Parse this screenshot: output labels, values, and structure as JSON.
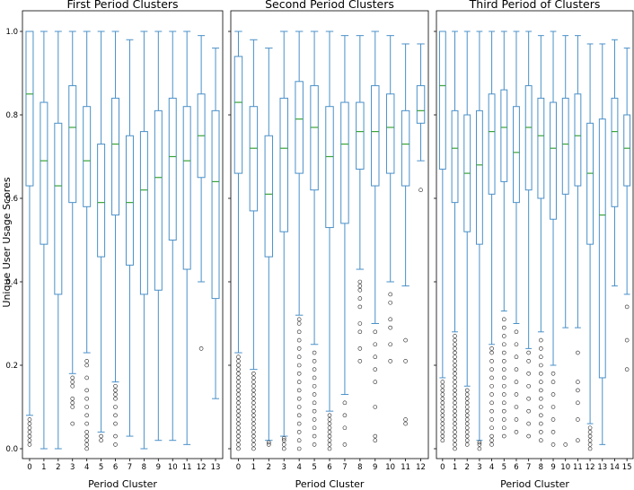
{
  "ylabel": "Unique User Usage Scores",
  "yticks": [
    0.0,
    0.2,
    0.4,
    0.6,
    0.8,
    1.0
  ],
  "ytick_labels": [
    "0.0",
    "0.2",
    "0.4",
    "0.6",
    "0.8",
    "1.0"
  ],
  "chart_data": [
    {
      "type": "box",
      "title": "First Period Clusters",
      "xlabel": "Period Cluster",
      "ylabel": "Unique User Usage Scores",
      "ylim": [
        0,
        1
      ],
      "categories": [
        "0",
        "1",
        "2",
        "3",
        "4",
        "5",
        "6",
        "7",
        "8",
        "9",
        "10",
        "11",
        "12",
        "13"
      ],
      "boxes": [
        {
          "whislo": 0.08,
          "q1": 0.63,
          "med": 0.85,
          "q3": 1.0,
          "whishi": 1.0,
          "fliers": [
            0.01,
            0.02,
            0.03,
            0.04,
            0.05,
            0.06,
            0.07
          ]
        },
        {
          "whislo": 0.0,
          "q1": 0.49,
          "med": 0.69,
          "q3": 0.83,
          "whishi": 1.0,
          "fliers": []
        },
        {
          "whislo": 0.0,
          "q1": 0.37,
          "med": 0.63,
          "q3": 0.78,
          "whishi": 1.0,
          "fliers": []
        },
        {
          "whislo": 0.18,
          "q1": 0.59,
          "med": 0.77,
          "q3": 0.87,
          "whishi": 1.0,
          "fliers": [
            0.06,
            0.1,
            0.11,
            0.12,
            0.15,
            0.16,
            0.17
          ]
        },
        {
          "whislo": 0.23,
          "q1": 0.58,
          "med": 0.69,
          "q3": 0.82,
          "whishi": 1.0,
          "fliers": [
            0.0,
            0.01,
            0.02,
            0.03,
            0.04,
            0.06,
            0.08,
            0.1,
            0.12,
            0.14,
            0.17,
            0.2,
            0.21
          ]
        },
        {
          "whislo": 0.04,
          "q1": 0.46,
          "med": 0.59,
          "q3": 0.73,
          "whishi": 1.0,
          "fliers": [
            0.02,
            0.03
          ]
        },
        {
          "whislo": 0.16,
          "q1": 0.56,
          "med": 0.73,
          "q3": 0.84,
          "whishi": 1.0,
          "fliers": [
            0.01,
            0.03,
            0.06,
            0.08,
            0.1,
            0.12,
            0.13,
            0.14,
            0.15
          ]
        },
        {
          "whislo": 0.03,
          "q1": 0.44,
          "med": 0.59,
          "q3": 0.75,
          "whishi": 0.98,
          "fliers": []
        },
        {
          "whislo": 0.0,
          "q1": 0.37,
          "med": 0.62,
          "q3": 0.76,
          "whishi": 1.0,
          "fliers": []
        },
        {
          "whislo": 0.02,
          "q1": 0.38,
          "med": 0.65,
          "q3": 0.81,
          "whishi": 1.0,
          "fliers": []
        },
        {
          "whislo": 0.02,
          "q1": 0.5,
          "med": 0.7,
          "q3": 0.84,
          "whishi": 1.0,
          "fliers": []
        },
        {
          "whislo": 0.01,
          "q1": 0.43,
          "med": 0.69,
          "q3": 0.82,
          "whishi": 1.0,
          "fliers": []
        },
        {
          "whislo": 0.4,
          "q1": 0.65,
          "med": 0.75,
          "q3": 0.85,
          "whishi": 0.99,
          "fliers": [
            0.24
          ]
        },
        {
          "whislo": 0.12,
          "q1": 0.36,
          "med": 0.64,
          "q3": 0.81,
          "whishi": 0.96,
          "fliers": []
        }
      ]
    },
    {
      "type": "box",
      "title": "Second Period Clusters",
      "xlabel": "Period Cluster",
      "ylim": [
        0,
        1
      ],
      "categories": [
        "0",
        "1",
        "2",
        "3",
        "4",
        "5",
        "6",
        "7",
        "8",
        "9",
        "10",
        "11",
        "12"
      ],
      "boxes": [
        {
          "whislo": 0.23,
          "q1": 0.66,
          "med": 0.83,
          "q3": 0.94,
          "whishi": 1.0,
          "fliers": [
            0.0,
            0.01,
            0.02,
            0.03,
            0.04,
            0.05,
            0.06,
            0.07,
            0.08,
            0.09,
            0.1,
            0.11,
            0.12,
            0.13,
            0.14,
            0.15,
            0.16,
            0.17,
            0.18,
            0.19,
            0.2,
            0.21,
            0.22
          ]
        },
        {
          "whislo": 0.19,
          "q1": 0.57,
          "med": 0.72,
          "q3": 0.82,
          "whishi": 0.98,
          "fliers": [
            0.0,
            0.01,
            0.02,
            0.03,
            0.04,
            0.05,
            0.06,
            0.07,
            0.08,
            0.09,
            0.1,
            0.11,
            0.12,
            0.13,
            0.14,
            0.15,
            0.16,
            0.17,
            0.18
          ]
        },
        {
          "whislo": 0.02,
          "q1": 0.46,
          "med": 0.61,
          "q3": 0.75,
          "whishi": 0.96,
          "fliers": [
            0.01,
            0.015
          ]
        },
        {
          "whislo": 0.03,
          "q1": 0.52,
          "med": 0.72,
          "q3": 0.84,
          "whishi": 1.0,
          "fliers": [
            0.0,
            0.01,
            0.02,
            0.025
          ]
        },
        {
          "whislo": 0.32,
          "q1": 0.66,
          "med": 0.79,
          "q3": 0.88,
          "whishi": 1.0,
          "fliers": [
            0.0,
            0.02,
            0.04,
            0.06,
            0.08,
            0.1,
            0.12,
            0.14,
            0.16,
            0.18,
            0.2,
            0.22,
            0.24,
            0.26,
            0.28,
            0.3,
            0.31
          ]
        },
        {
          "whislo": 0.25,
          "q1": 0.62,
          "med": 0.77,
          "q3": 0.87,
          "whishi": 1.0,
          "fliers": [
            0.01,
            0.03,
            0.05,
            0.07,
            0.09,
            0.11,
            0.13,
            0.15,
            0.17,
            0.19,
            0.21,
            0.23
          ]
        },
        {
          "whislo": 0.09,
          "q1": 0.53,
          "med": 0.7,
          "q3": 0.82,
          "whishi": 1.0,
          "fliers": [
            0.0,
            0.01,
            0.02,
            0.03,
            0.04,
            0.05,
            0.06,
            0.07,
            0.08
          ]
        },
        {
          "whislo": 0.13,
          "q1": 0.54,
          "med": 0.73,
          "q3": 0.83,
          "whishi": 0.99,
          "fliers": [
            0.01,
            0.05,
            0.08,
            0.11
          ]
        },
        {
          "whislo": 0.43,
          "q1": 0.67,
          "med": 0.76,
          "q3": 0.83,
          "whishi": 0.99,
          "fliers": [
            0.21,
            0.24,
            0.28,
            0.3,
            0.34,
            0.36,
            0.38,
            0.39,
            0.4
          ]
        },
        {
          "whislo": 0.3,
          "q1": 0.63,
          "med": 0.76,
          "q3": 0.87,
          "whishi": 1.0,
          "fliers": [
            0.02,
            0.03,
            0.1,
            0.16,
            0.19,
            0.22,
            0.25,
            0.28
          ]
        },
        {
          "whislo": 0.4,
          "q1": 0.66,
          "med": 0.77,
          "q3": 0.85,
          "whishi": 0.99,
          "fliers": [
            0.21,
            0.25,
            0.29,
            0.31,
            0.35,
            0.37
          ]
        },
        {
          "whislo": 0.39,
          "q1": 0.63,
          "med": 0.73,
          "q3": 0.81,
          "whishi": 0.97,
          "fliers": [
            0.06,
            0.07,
            0.21,
            0.26
          ]
        },
        {
          "whislo": 0.69,
          "q1": 0.78,
          "med": 0.81,
          "q3": 0.87,
          "whishi": 0.97,
          "fliers": [
            0.62
          ]
        }
      ]
    },
    {
      "type": "box",
      "title": "Third Period of Clusters",
      "xlabel": "Period Cluster",
      "ylim": [
        0,
        1
      ],
      "categories": [
        "0",
        "1",
        "2",
        "3",
        "4",
        "5",
        "6",
        "7",
        "8",
        "9",
        "10",
        "11",
        "12",
        "13",
        "14",
        "15"
      ],
      "boxes": [
        {
          "whislo": 0.17,
          "q1": 0.67,
          "med": 0.87,
          "q3": 1.0,
          "whishi": 1.0,
          "fliers": [
            0.02,
            0.03,
            0.04,
            0.05,
            0.06,
            0.07,
            0.08,
            0.09,
            0.1,
            0.11,
            0.12,
            0.13,
            0.14,
            0.15,
            0.16
          ]
        },
        {
          "whislo": 0.28,
          "q1": 0.59,
          "med": 0.72,
          "q3": 0.81,
          "whishi": 1.0,
          "fliers": [
            0.0,
            0.01,
            0.02,
            0.03,
            0.04,
            0.05,
            0.06,
            0.07,
            0.08,
            0.09,
            0.1,
            0.11,
            0.12,
            0.13,
            0.14,
            0.15,
            0.16,
            0.17,
            0.18,
            0.19,
            0.2,
            0.21,
            0.22,
            0.23,
            0.24,
            0.25,
            0.26,
            0.27
          ]
        },
        {
          "whislo": 0.15,
          "q1": 0.52,
          "med": 0.66,
          "q3": 0.8,
          "whishi": 1.0,
          "fliers": [
            0.01,
            0.02,
            0.03,
            0.04,
            0.05,
            0.06,
            0.07,
            0.08,
            0.09,
            0.1,
            0.11,
            0.12,
            0.13,
            0.14
          ]
        },
        {
          "whislo": 0.02,
          "q1": 0.49,
          "med": 0.68,
          "q3": 0.81,
          "whishi": 1.0,
          "fliers": [
            0.0,
            0.01,
            0.015
          ]
        },
        {
          "whislo": 0.25,
          "q1": 0.61,
          "med": 0.76,
          "q3": 0.85,
          "whishi": 1.0,
          "fliers": [
            0.01,
            0.02,
            0.03,
            0.05,
            0.07,
            0.09,
            0.11,
            0.13,
            0.15,
            0.17,
            0.19,
            0.21,
            0.23,
            0.24
          ]
        },
        {
          "whislo": 0.33,
          "q1": 0.64,
          "med": 0.77,
          "q3": 0.86,
          "whishi": 1.0,
          "fliers": [
            0.03,
            0.05,
            0.07,
            0.09,
            0.11,
            0.13,
            0.15,
            0.17,
            0.19,
            0.21,
            0.23,
            0.25,
            0.27,
            0.29,
            0.31
          ]
        },
        {
          "whislo": 0.3,
          "q1": 0.59,
          "med": 0.71,
          "q3": 0.82,
          "whishi": 1.0,
          "fliers": [
            0.04,
            0.07,
            0.1,
            0.13,
            0.16,
            0.19,
            0.22,
            0.25,
            0.28
          ]
        },
        {
          "whislo": 0.24,
          "q1": 0.62,
          "med": 0.77,
          "q3": 0.87,
          "whishi": 1.0,
          "fliers": [
            0.03,
            0.06,
            0.09,
            0.12,
            0.15,
            0.18,
            0.21,
            0.23
          ]
        },
        {
          "whislo": 0.28,
          "q1": 0.6,
          "med": 0.75,
          "q3": 0.84,
          "whishi": 0.99,
          "fliers": [
            0.02,
            0.04,
            0.06,
            0.08,
            0.1,
            0.12,
            0.14,
            0.16,
            0.18,
            0.2,
            0.22,
            0.24,
            0.26
          ]
        },
        {
          "whislo": 0.2,
          "q1": 0.55,
          "med": 0.72,
          "q3": 0.83,
          "whishi": 1.0,
          "fliers": [
            0.01,
            0.04,
            0.07,
            0.1,
            0.13,
            0.16,
            0.18
          ]
        },
        {
          "whislo": 0.29,
          "q1": 0.61,
          "med": 0.73,
          "q3": 0.84,
          "whishi": 0.99,
          "fliers": [
            0.01
          ]
        },
        {
          "whislo": 0.29,
          "q1": 0.63,
          "med": 0.75,
          "q3": 0.85,
          "whishi": 0.99,
          "fliers": [
            0.02,
            0.07,
            0.11,
            0.14,
            0.16,
            0.23
          ]
        },
        {
          "whislo": 0.06,
          "q1": 0.49,
          "med": 0.66,
          "q3": 0.78,
          "whishi": 0.97,
          "fliers": [
            0.0,
            0.01,
            0.02,
            0.03,
            0.04,
            0.05
          ]
        },
        {
          "whislo": 0.01,
          "q1": 0.17,
          "med": 0.56,
          "q3": 0.79,
          "whishi": 0.97,
          "fliers": []
        },
        {
          "whislo": 0.39,
          "q1": 0.58,
          "med": 0.76,
          "q3": 0.84,
          "whishi": 0.98,
          "fliers": []
        },
        {
          "whislo": 0.37,
          "q1": 0.63,
          "med": 0.72,
          "q3": 0.8,
          "whishi": 0.96,
          "fliers": [
            0.19,
            0.26,
            0.34
          ]
        }
      ]
    }
  ]
}
